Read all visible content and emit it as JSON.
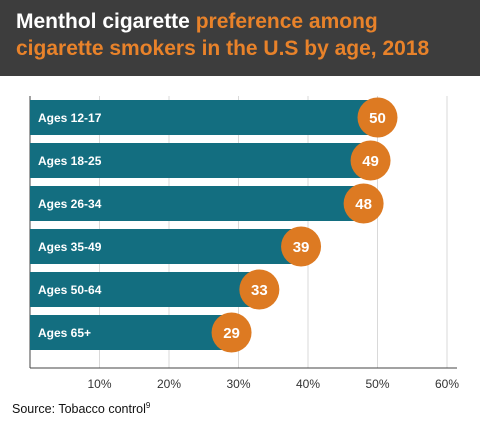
{
  "header": {
    "title_white": "Menthol cigarette",
    "title_orange": "preference among cigarette smokers in the U.S by age, 2018"
  },
  "source": {
    "text": "Source: Tobacco control",
    "superscript": "9"
  },
  "colors": {
    "header_bg": "#3d3d3d",
    "title_accent": "#e8822a",
    "bar": "#136e80",
    "bubble": "#dd7a22"
  },
  "chart_data": {
    "type": "bar",
    "orientation": "horizontal",
    "categories": [
      "Ages 12-17",
      "Ages 18-25",
      "Ages 26-34",
      "Ages 35-49",
      "Ages 50-64",
      "Ages 65+"
    ],
    "values": [
      50,
      49,
      48,
      39,
      33,
      29
    ],
    "value_labels": [
      "50",
      "49",
      "48",
      "39",
      "33",
      "29"
    ],
    "xlim": [
      0,
      60
    ],
    "ticks": [
      10,
      20,
      30,
      40,
      50,
      60
    ],
    "tick_labels": [
      "10%",
      "20%",
      "30%",
      "40%",
      "50%",
      "60%"
    ],
    "grid": true,
    "title": "Menthol cigarette preference among cigarette smokers in the U.S by age, 2018"
  }
}
